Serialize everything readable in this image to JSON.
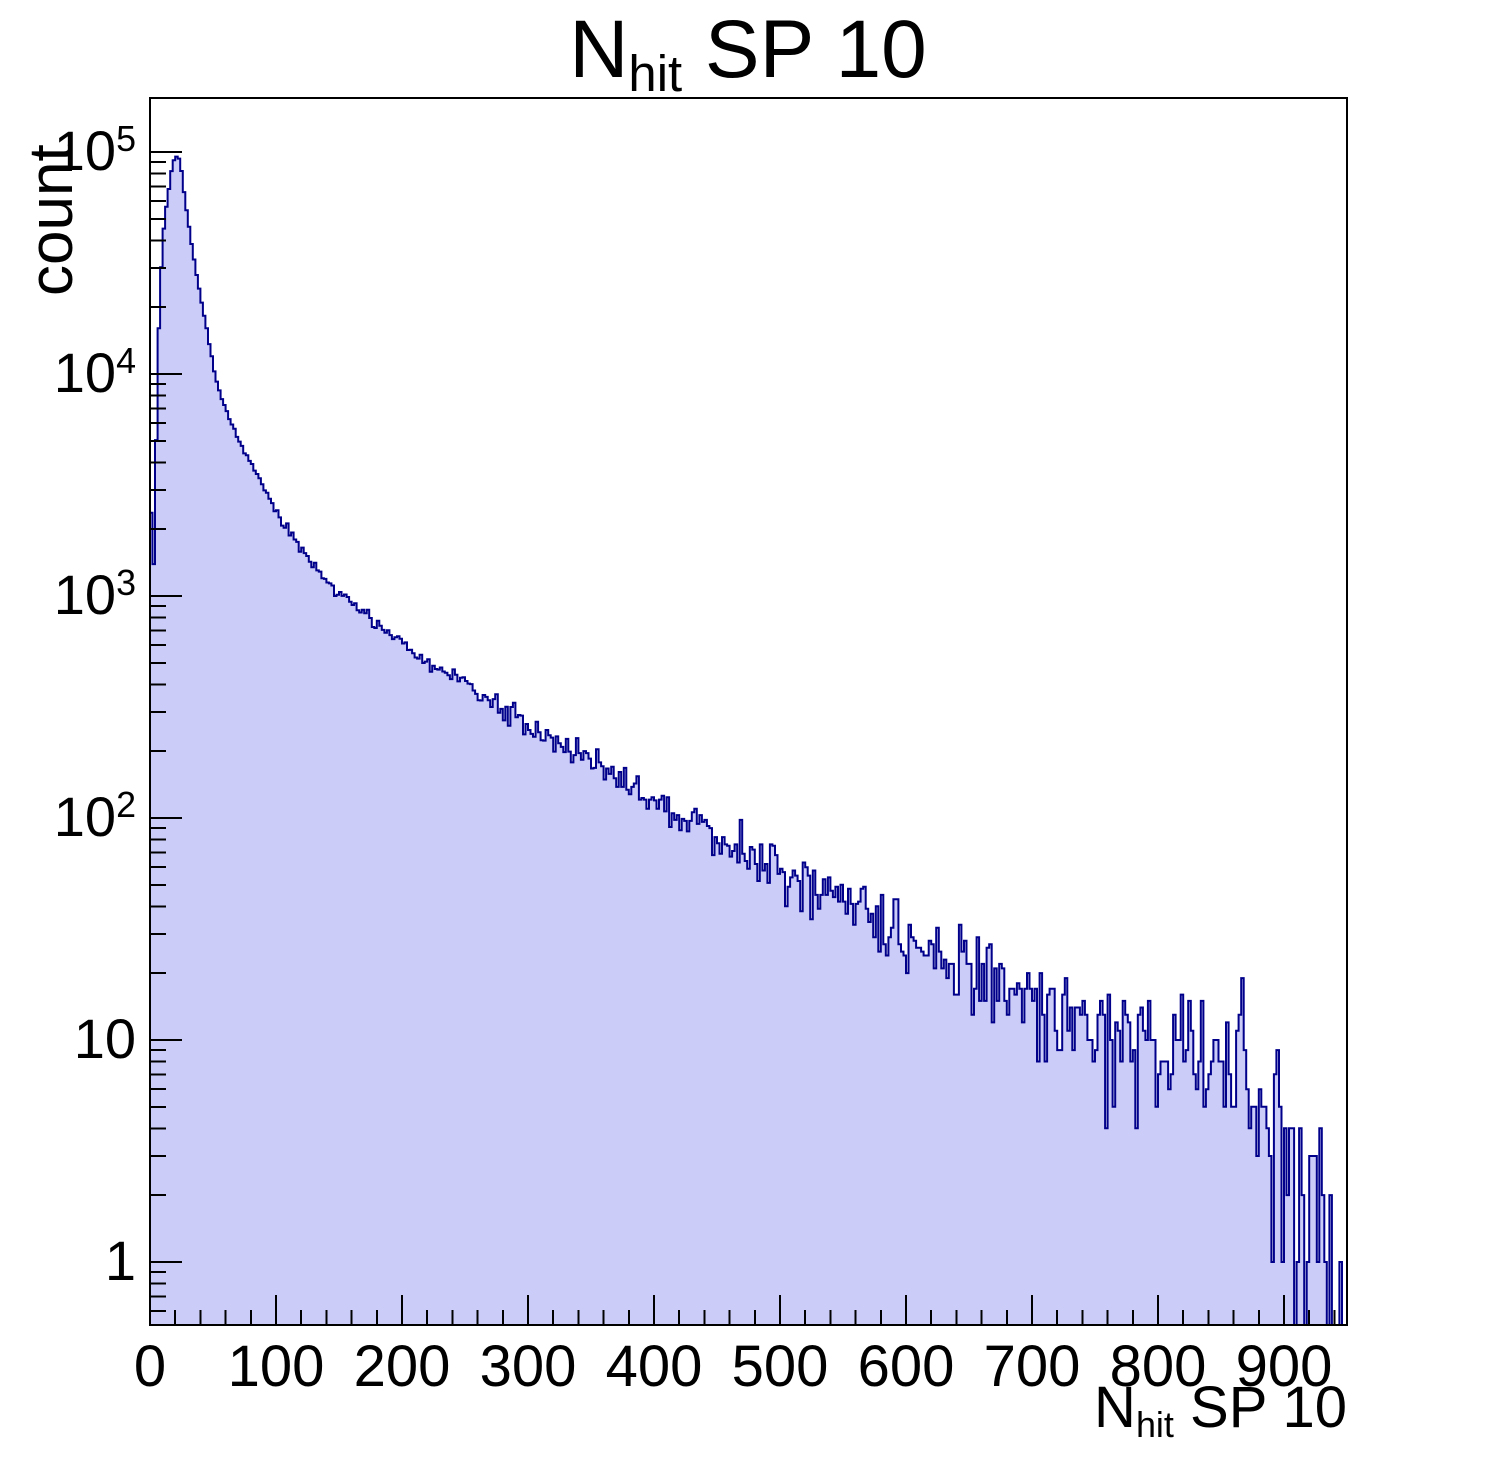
{
  "title": {
    "main": "N",
    "sub": "hit",
    "rest": " SP 10"
  },
  "y_axis": {
    "label": "count",
    "tick_labels": [
      {
        "base": "1",
        "exp": "",
        "value": 1
      },
      {
        "base": "10",
        "exp": "",
        "value": 10
      },
      {
        "base": "10",
        "exp": "2",
        "value": 100
      },
      {
        "base": "10",
        "exp": "3",
        "value": 1000
      },
      {
        "base": "10",
        "exp": "4",
        "value": 10000
      },
      {
        "base": "10",
        "exp": "5",
        "value": 100000
      }
    ]
  },
  "x_axis": {
    "title_main": "N",
    "title_sub": "hit",
    "title_rest": " SP 10",
    "tick_values": [
      0,
      100,
      200,
      300,
      400,
      500,
      600,
      700,
      800,
      900
    ],
    "minor_tick_step": 20
  },
  "colors": {
    "fill": "#ccccf8",
    "line": "#00008b",
    "frame": "#000000",
    "background": "#ffffff"
  },
  "chart_data": {
    "type": "bar",
    "subtype": "histogram",
    "title": "N_hit SP 10",
    "xlabel": "N_hit SP 10",
    "ylabel": "count",
    "x_range": [
      0,
      950
    ],
    "y_scale": "log",
    "y_range": [
      0.52,
      175000
    ],
    "bin_width": 2,
    "peak": {
      "x": 21,
      "count": 95500
    },
    "first_bin_count": 2400,
    "grid": false,
    "legend": false,
    "noise_model": "poisson",
    "noise_seed": 20,
    "anchors": [
      [
        0,
        2400
      ],
      [
        2,
        2400
      ],
      [
        3,
        1400
      ],
      [
        4,
        2600
      ],
      [
        5,
        5000
      ],
      [
        6,
        9500
      ],
      [
        7,
        16000
      ],
      [
        9,
        30000
      ],
      [
        11,
        45000
      ],
      [
        13,
        57000
      ],
      [
        15,
        68000
      ],
      [
        17,
        82000
      ],
      [
        19,
        92000
      ],
      [
        21,
        95500
      ],
      [
        23,
        93000
      ],
      [
        25,
        82000
      ],
      [
        27,
        66000
      ],
      [
        29,
        55000
      ],
      [
        31,
        46000
      ],
      [
        34,
        35000
      ],
      [
        38,
        26000
      ],
      [
        44,
        17000
      ],
      [
        49,
        12000
      ],
      [
        54,
        8700
      ],
      [
        62,
        6500
      ],
      [
        70,
        5100
      ],
      [
        80,
        4000
      ],
      [
        88,
        3200
      ],
      [
        100,
        2400
      ],
      [
        115,
        1800
      ],
      [
        128,
        1420
      ],
      [
        142,
        1150
      ],
      [
        155,
        980
      ],
      [
        168,
        870
      ],
      [
        180,
        760
      ],
      [
        195,
        640
      ],
      [
        210,
        545
      ],
      [
        225,
        480
      ],
      [
        247,
        420
      ],
      [
        265,
        350
      ],
      [
        285,
        300
      ],
      [
        300,
        255
      ],
      [
        320,
        225
      ],
      [
        340,
        195
      ],
      [
        360,
        168
      ],
      [
        380,
        144
      ],
      [
        400,
        122
      ],
      [
        420,
        104
      ],
      [
        436,
        92
      ],
      [
        460,
        78
      ],
      [
        480,
        66
      ],
      [
        500,
        56
      ],
      [
        520,
        49
      ],
      [
        545,
        43
      ],
      [
        565,
        39
      ],
      [
        585,
        34
      ],
      [
        600,
        30
      ],
      [
        620,
        26
      ],
      [
        640,
        23
      ],
      [
        660,
        21
      ],
      [
        680,
        18.5
      ],
      [
        700,
        16.5
      ],
      [
        720,
        14.5
      ],
      [
        740,
        13
      ],
      [
        760,
        12
      ],
      [
        780,
        11
      ],
      [
        800,
        10
      ],
      [
        820,
        9.2
      ],
      [
        840,
        8.5
      ],
      [
        860,
        8
      ],
      [
        880,
        6.5
      ],
      [
        895,
        5
      ],
      [
        902,
        3.5
      ],
      [
        908,
        2.2
      ],
      [
        915,
        1.4
      ],
      [
        925,
        0.9
      ],
      [
        935,
        0.7
      ],
      [
        950,
        0.8
      ]
    ]
  }
}
